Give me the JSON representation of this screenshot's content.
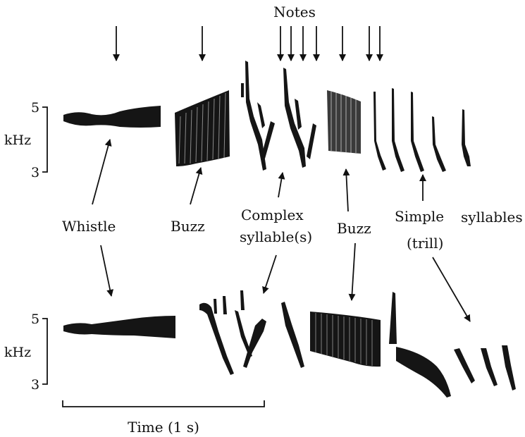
{
  "header": {
    "notes_label": "Notes"
  },
  "top_axis": {
    "tick_high": "5",
    "unit": "kHz",
    "tick_low": "3"
  },
  "bottom_axis": {
    "tick_high": "5",
    "unit": "kHz",
    "tick_low": "3"
  },
  "labels": {
    "whistle": "Whistle",
    "buzz_1": "Buzz",
    "complex_line1": "Complex",
    "complex_line2": "syllable(s)",
    "buzz_2": "Buzz",
    "simple_line1": "Simple",
    "simple_line2": "(trill)",
    "syllables": "syllables"
  },
  "time_scale": {
    "label": "Time (1 s)"
  }
}
